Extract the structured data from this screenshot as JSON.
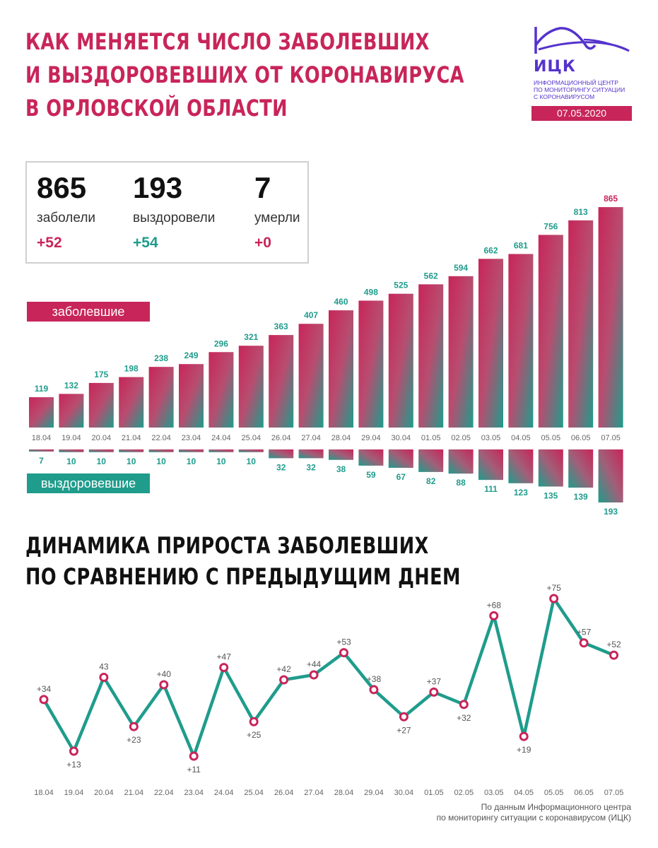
{
  "header": {
    "title_lines": [
      "КАК МЕНЯЕТСЯ ЧИСЛО ЗАБОЛЕВШИХ",
      "И ВЫЗДОРОВЕВШИХ ОТ КОРОНАВИРУСА",
      "В ОРЛОВСКОЙ ОБЛАСТИ"
    ],
    "logo_abbr": "ИЦК",
    "logo_name_lines": [
      "Информационный центр",
      "по мониторингу ситуации",
      "с коронавирусом"
    ],
    "date": "07.05.2020"
  },
  "summary": [
    {
      "value": "865",
      "label": "заболели",
      "delta": "+52",
      "color": "#c8255a"
    },
    {
      "value": "193",
      "label": "выздоровели",
      "delta": "+54",
      "color": "#1f9c8c"
    },
    {
      "value": "7",
      "label": "умерли",
      "delta": "+0",
      "color": "#c8255a"
    }
  ],
  "colors": {
    "accent": "#c8255a",
    "teal": "#1f9c8c",
    "logo": "#5533cc"
  },
  "chart_data": [
    {
      "type": "bar",
      "categories": [
        "18.04",
        "19.04",
        "20.04",
        "21.04",
        "22.04",
        "23.04",
        "24.04",
        "25.04",
        "26.04",
        "27.04",
        "28.04",
        "29.04",
        "30.04",
        "01.05",
        "02.05",
        "03.05",
        "04.05",
        "05.05",
        "06.05",
        "07.05"
      ],
      "series": [
        {
          "name": "заболевшие",
          "values": [
            119,
            132,
            175,
            198,
            238,
            249,
            296,
            321,
            363,
            407,
            460,
            498,
            525,
            562,
            594,
            662,
            681,
            756,
            813,
            865
          ]
        },
        {
          "name": "выздоровевшие",
          "values": [
            7,
            10,
            10,
            10,
            10,
            10,
            10,
            10,
            32,
            32,
            38,
            59,
            67,
            82,
            88,
            111,
            123,
            135,
            139,
            193
          ]
        }
      ],
      "title": "",
      "xlabel": "",
      "ylabel": ""
    },
    {
      "type": "line",
      "title": "ДИНАМИКА ПРИРОСТА ЗАБОЛЕВШИХ ПО СРАВНЕНИЮ С ПРЕДЫДУЩИМ ДНЕМ",
      "title_lines": [
        "ДИНАМИКА ПРИРОСТА ЗАБОЛЕВШИХ",
        "ПО СРАВНЕНИЮ С ПРЕДЫДУЩИМ ДНЕМ"
      ],
      "categories": [
        "18.04",
        "19.04",
        "20.04",
        "21.04",
        "22.04",
        "23.04",
        "24.04",
        "25.04",
        "26.04",
        "27.04",
        "28.04",
        "29.04",
        "30.04",
        "01.05",
        "02.05",
        "03.05",
        "04.05",
        "05.05",
        "06.05",
        "07.05"
      ],
      "values": [
        34,
        13,
        43,
        23,
        40,
        11,
        47,
        25,
        42,
        44,
        53,
        38,
        27,
        37,
        32,
        68,
        19,
        75,
        57,
        52
      ],
      "labels": [
        "+34",
        "+13",
        "43",
        "+23",
        "+40",
        "+11",
        "+47",
        "+25",
        "+42",
        "+44",
        "+53",
        "+38",
        "+27",
        "+37",
        "+32",
        "+68",
        "+19",
        "+75",
        "+57",
        "+52"
      ],
      "xlabel": "",
      "ylabel": ""
    }
  ],
  "source_lines": [
    "По данным Информационного центра",
    "по мониторингу ситуации с коронавирусом (ИЦК)"
  ]
}
